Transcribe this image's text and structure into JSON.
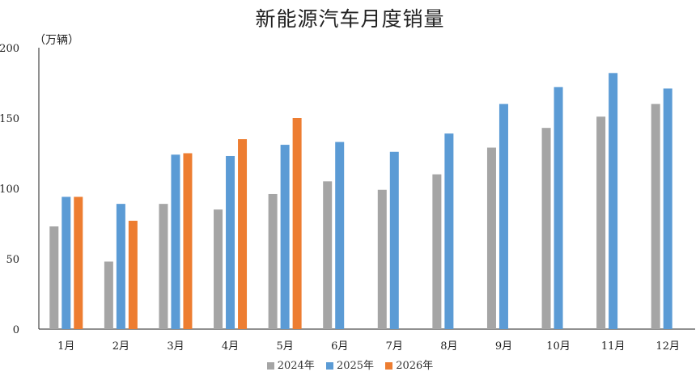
{
  "chart_data": {
    "type": "bar",
    "title": "新能源汽车月度销量",
    "unit": "（万辆）",
    "categories": [
      "1月",
      "2月",
      "3月",
      "4月",
      "5月",
      "6月",
      "7月",
      "8月",
      "9月",
      "10月",
      "11月",
      "12月"
    ],
    "series": [
      {
        "name": "2024年",
        "color": "#a5a5a5",
        "values": [
          73,
          48,
          89,
          85,
          96,
          105,
          99,
          110,
          129,
          143,
          151,
          160
        ]
      },
      {
        "name": "2025年",
        "color": "#5b9bd5",
        "values": [
          94,
          89,
          124,
          123,
          131,
          133,
          126,
          139,
          160,
          172,
          182,
          171
        ]
      },
      {
        "name": "2026年",
        "color": "#ed7d31",
        "values": [
          94,
          77,
          125,
          135,
          150,
          null,
          null,
          null,
          null,
          null,
          null,
          null
        ]
      }
    ],
    "yticks": [
      0,
      50,
      100,
      150,
      200
    ],
    "ylim": [
      0,
      200
    ],
    "grid": false,
    "legend_position": "bottom"
  }
}
